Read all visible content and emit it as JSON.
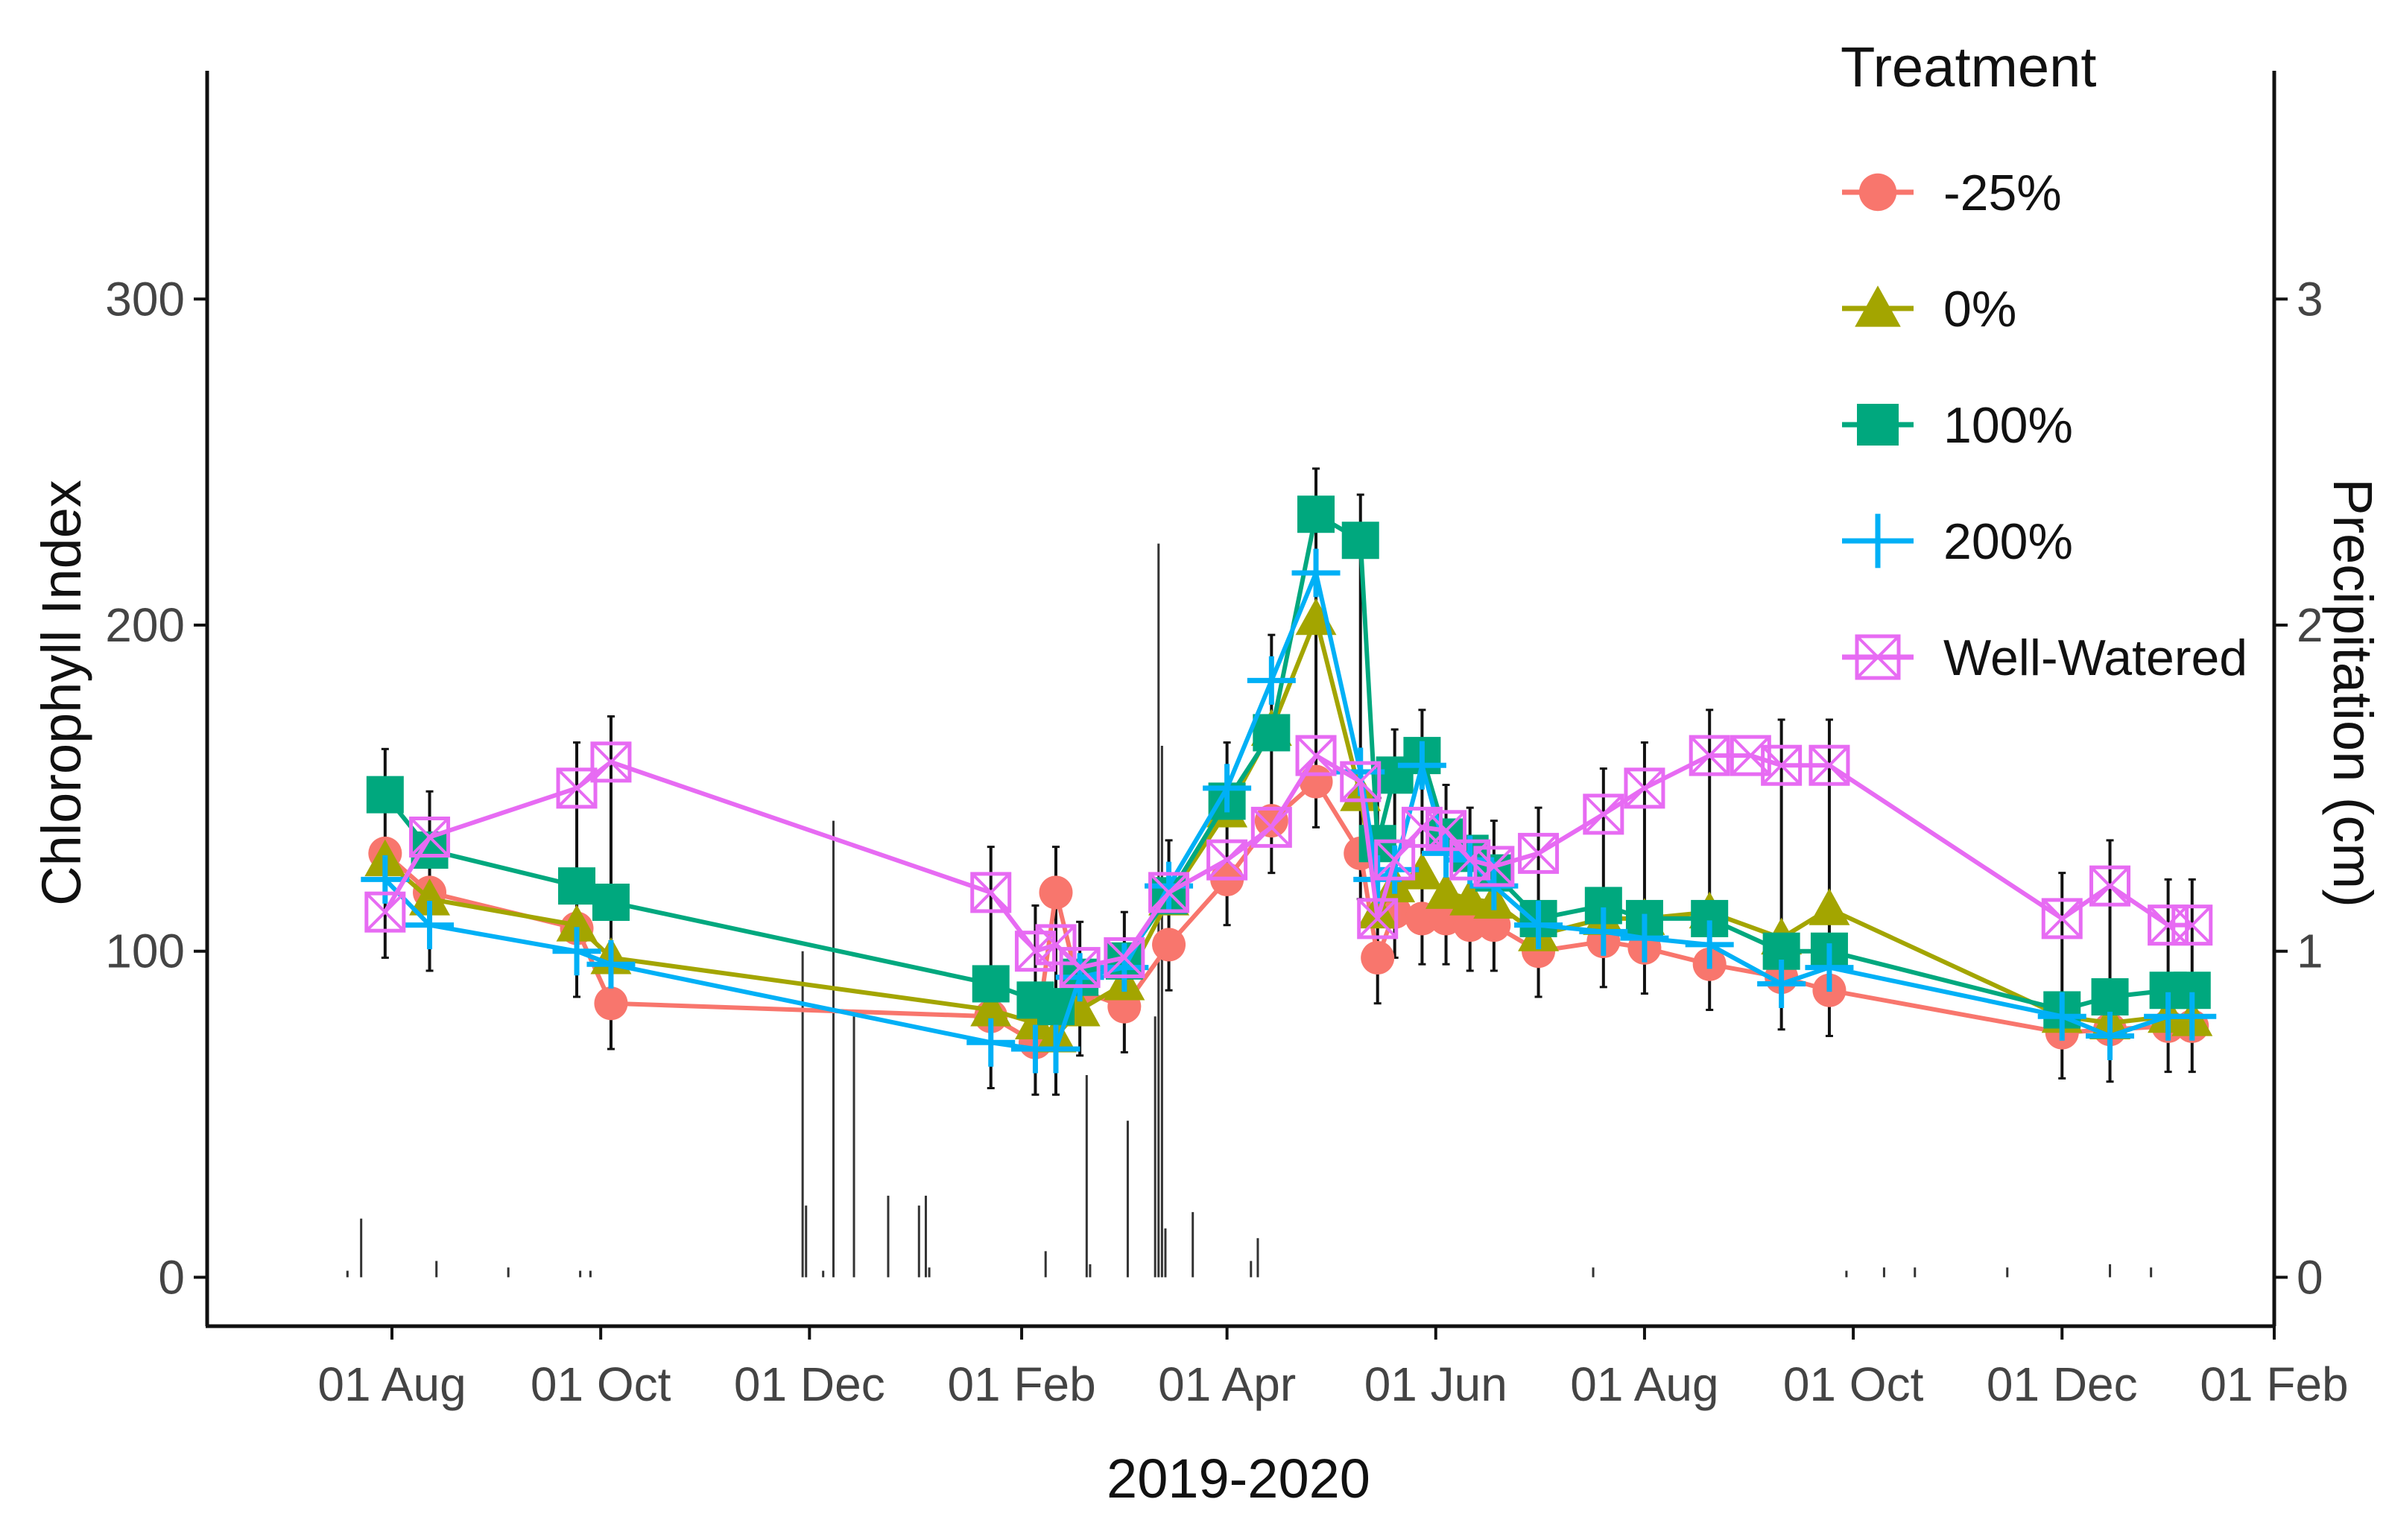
{
  "chart_data": {
    "type": "line",
    "xlabel": "2019-2020",
    "ylabel": "Chlorophyll Index",
    "y2label": "Precipitation (cm)",
    "x_ticks": [
      "01 Aug",
      "01 Oct",
      "01 Dec",
      "01 Feb",
      "01 Apr",
      "01 Jun",
      "01 Aug",
      "01 Oct",
      "01 Dec",
      "01 Feb"
    ],
    "x_tick_dates": [
      "2019-08-01",
      "2019-10-01",
      "2019-12-01",
      "2020-02-01",
      "2020-04-01",
      "2020-06-01",
      "2020-08-01",
      "2020-10-01",
      "2020-12-01",
      "2021-02-01"
    ],
    "xlim": [
      "2019-06-08",
      "2021-02-01"
    ],
    "y_ticks": [
      0,
      100,
      200,
      300
    ],
    "ylim": [
      -15,
      370
    ],
    "y2_ticks": [
      0,
      1,
      2,
      3
    ],
    "y2_scale": 100,
    "grid": false,
    "legend": {
      "title": "Treatment",
      "position": "right-inside-top"
    },
    "series": [
      {
        "name": "-25%",
        "color": "#F8766D",
        "marker": "circle",
        "points": [
          [
            "2019-07-30",
            130
          ],
          [
            "2019-08-12",
            118
          ],
          [
            "2019-09-24",
            107
          ],
          [
            "2019-10-04",
            84
          ],
          [
            "2020-01-23",
            80
          ],
          [
            "2020-02-05",
            72
          ],
          [
            "2020-02-11",
            118
          ],
          [
            "2020-02-18",
            88
          ],
          [
            "2020-03-02",
            83
          ],
          [
            "2020-03-15",
            102
          ],
          [
            "2020-04-01",
            122
          ],
          [
            "2020-04-14",
            140
          ],
          [
            "2020-04-27",
            152
          ],
          [
            "2020-05-10",
            130
          ],
          [
            "2020-05-15",
            98
          ],
          [
            "2020-05-20",
            112
          ],
          [
            "2020-05-28",
            110
          ],
          [
            "2020-06-04",
            110
          ],
          [
            "2020-06-11",
            108
          ],
          [
            "2020-06-18",
            108
          ],
          [
            "2020-07-01",
            100
          ],
          [
            "2020-07-20",
            103
          ],
          [
            "2020-08-01",
            101
          ],
          [
            "2020-08-20",
            96
          ],
          [
            "2020-09-10",
            92
          ],
          [
            "2020-09-24",
            88
          ],
          [
            "2020-12-01",
            75
          ],
          [
            "2020-12-15",
            76
          ],
          [
            "2021-01-01",
            77
          ],
          [
            "2021-01-08",
            77
          ]
        ]
      },
      {
        "name": "0%",
        "color": "#A3A500",
        "marker": "triangle",
        "points": [
          [
            "2019-07-30",
            128
          ],
          [
            "2019-08-12",
            116
          ],
          [
            "2019-09-24",
            108
          ],
          [
            "2019-10-04",
            98
          ],
          [
            "2020-01-23",
            82
          ],
          [
            "2020-02-05",
            78
          ],
          [
            "2020-02-11",
            74
          ],
          [
            "2020-02-18",
            82
          ],
          [
            "2020-03-02",
            90
          ],
          [
            "2020-03-15",
            116
          ],
          [
            "2020-04-01",
            143
          ],
          [
            "2020-04-14",
            168
          ],
          [
            "2020-04-27",
            202
          ],
          [
            "2020-05-10",
            148
          ],
          [
            "2020-05-15",
            112
          ],
          [
            "2020-05-20",
            120
          ],
          [
            "2020-05-28",
            124
          ],
          [
            "2020-06-04",
            118
          ],
          [
            "2020-06-11",
            116
          ],
          [
            "2020-06-18",
            115
          ],
          [
            "2020-07-01",
            105
          ],
          [
            "2020-07-20",
            110
          ],
          [
            "2020-08-01",
            110
          ],
          [
            "2020-08-20",
            112
          ],
          [
            "2020-09-10",
            104
          ],
          [
            "2020-09-24",
            113
          ],
          [
            "2020-12-01",
            80
          ],
          [
            "2020-12-15",
            78
          ],
          [
            "2021-01-01",
            80
          ],
          [
            "2021-01-08",
            79
          ]
        ]
      },
      {
        "name": "100%",
        "color": "#00A87E",
        "marker": "square",
        "points": [
          [
            "2019-07-30",
            148
          ],
          [
            "2019-08-12",
            131
          ],
          [
            "2019-09-24",
            120
          ],
          [
            "2019-10-04",
            115
          ],
          [
            "2020-01-23",
            90
          ],
          [
            "2020-02-05",
            85
          ],
          [
            "2020-02-11",
            83
          ],
          [
            "2020-02-18",
            92
          ],
          [
            "2020-03-02",
            97
          ],
          [
            "2020-03-15",
            117
          ],
          [
            "2020-04-01",
            146
          ],
          [
            "2020-04-14",
            167
          ],
          [
            "2020-04-27",
            234
          ],
          [
            "2020-05-10",
            226
          ],
          [
            "2020-05-15",
            133
          ],
          [
            "2020-05-20",
            154
          ],
          [
            "2020-05-28",
            160
          ],
          [
            "2020-06-04",
            135
          ],
          [
            "2020-06-11",
            130
          ],
          [
            "2020-06-18",
            124
          ],
          [
            "2020-07-01",
            110
          ],
          [
            "2020-07-20",
            114
          ],
          [
            "2020-08-01",
            110
          ],
          [
            "2020-08-20",
            110
          ],
          [
            "2020-09-10",
            100
          ],
          [
            "2020-09-24",
            100
          ],
          [
            "2020-12-01",
            82
          ],
          [
            "2020-12-15",
            86
          ],
          [
            "2021-01-01",
            88
          ],
          [
            "2021-01-08",
            88
          ]
        ]
      },
      {
        "name": "200%",
        "color": "#00B0F6",
        "marker": "plus",
        "points": [
          [
            "2019-07-30",
            122
          ],
          [
            "2019-08-12",
            108
          ],
          [
            "2019-09-24",
            100
          ],
          [
            "2019-10-04",
            96
          ],
          [
            "2020-01-23",
            72
          ],
          [
            "2020-02-05",
            70
          ],
          [
            "2020-02-11",
            70
          ],
          [
            "2020-02-18",
            92
          ],
          [
            "2020-03-02",
            95
          ],
          [
            "2020-03-15",
            120
          ],
          [
            "2020-04-01",
            150
          ],
          [
            "2020-04-14",
            183
          ],
          [
            "2020-04-27",
            216
          ],
          [
            "2020-05-10",
            155
          ],
          [
            "2020-05-15",
            122
          ],
          [
            "2020-05-20",
            125
          ],
          [
            "2020-05-28",
            157
          ],
          [
            "2020-06-04",
            130
          ],
          [
            "2020-06-11",
            128
          ],
          [
            "2020-06-18",
            120
          ],
          [
            "2020-07-01",
            108
          ],
          [
            "2020-07-20",
            106
          ],
          [
            "2020-08-01",
            104
          ],
          [
            "2020-08-20",
            102
          ],
          [
            "2020-09-10",
            90
          ],
          [
            "2020-09-24",
            95
          ],
          [
            "2020-12-01",
            80
          ],
          [
            "2020-12-15",
            74
          ],
          [
            "2021-01-01",
            80
          ],
          [
            "2021-01-08",
            80
          ]
        ]
      },
      {
        "name": "Well-Watered",
        "color": "#E76BF3",
        "marker": "square-cross",
        "points": [
          [
            "2019-07-30",
            112
          ],
          [
            "2019-08-12",
            135
          ],
          [
            "2019-09-24",
            150
          ],
          [
            "2019-10-04",
            158
          ],
          [
            "2020-01-23",
            118
          ],
          [
            "2020-02-05",
            100
          ],
          [
            "2020-02-11",
            102
          ],
          [
            "2020-02-18",
            95
          ],
          [
            "2020-03-02",
            98
          ],
          [
            "2020-03-15",
            118
          ],
          [
            "2020-04-01",
            128
          ],
          [
            "2020-04-14",
            138
          ],
          [
            "2020-04-27",
            160
          ],
          [
            "2020-05-10",
            152
          ],
          [
            "2020-05-15",
            110
          ],
          [
            "2020-05-20",
            128
          ],
          [
            "2020-05-28",
            138
          ],
          [
            "2020-06-04",
            137
          ],
          [
            "2020-06-11",
            128
          ],
          [
            "2020-06-18",
            126
          ],
          [
            "2020-07-01",
            130
          ],
          [
            "2020-07-20",
            142
          ],
          [
            "2020-08-01",
            150
          ],
          [
            "2020-08-20",
            160
          ],
          [
            "2020-09-01",
            160
          ],
          [
            "2020-09-10",
            157
          ],
          [
            "2020-09-24",
            157
          ],
          [
            "2020-12-01",
            110
          ],
          [
            "2020-12-15",
            120
          ],
          [
            "2021-01-01",
            108
          ],
          [
            "2021-01-08",
            108
          ]
        ]
      }
    ],
    "error_bar_dates": [
      "2019-07-30",
      "2019-08-12",
      "2019-09-24",
      "2019-10-04",
      "2020-01-23",
      "2020-02-05",
      "2020-02-11",
      "2020-02-18",
      "2020-03-02",
      "2020-03-15",
      "2020-04-01",
      "2020-04-14",
      "2020-04-27",
      "2020-05-10",
      "2020-05-15",
      "2020-05-20",
      "2020-05-28",
      "2020-06-04",
      "2020-06-11",
      "2020-06-18",
      "2020-07-01",
      "2020-07-20",
      "2020-08-01",
      "2020-08-20",
      "2020-09-10",
      "2020-09-24",
      "2020-12-01",
      "2020-12-15",
      "2021-01-01",
      "2021-01-08"
    ],
    "error_bar_halfwidth": 14,
    "precipitation_cm": {
      "color": "#333333",
      "bars": [
        [
          "2019-07-19",
          0.02
        ],
        [
          "2019-07-23",
          0.18
        ],
        [
          "2019-08-14",
          0.05
        ],
        [
          "2019-09-04",
          0.03
        ],
        [
          "2019-09-25",
          0.02
        ],
        [
          "2019-09-28",
          0.02
        ],
        [
          "2019-11-29",
          1.0
        ],
        [
          "2019-11-30",
          0.22
        ],
        [
          "2019-12-05",
          0.02
        ],
        [
          "2019-12-08",
          1.4
        ],
        [
          "2019-12-14",
          0.8
        ],
        [
          "2019-12-24",
          0.25
        ],
        [
          "2020-01-02",
          0.22
        ],
        [
          "2020-01-04",
          0.25
        ],
        [
          "2020-01-05",
          0.03
        ],
        [
          "2020-02-08",
          0.08
        ],
        [
          "2020-02-20",
          0.62
        ],
        [
          "2020-02-21",
          0.04
        ],
        [
          "2020-03-03",
          0.48
        ],
        [
          "2020-03-11",
          0.8
        ],
        [
          "2020-03-12",
          2.25
        ],
        [
          "2020-03-13",
          1.63
        ],
        [
          "2020-03-14",
          0.15
        ],
        [
          "2020-03-22",
          0.2
        ],
        [
          "2020-04-08",
          0.05
        ],
        [
          "2020-04-10",
          0.12
        ],
        [
          "2020-07-17",
          0.03
        ],
        [
          "2020-09-29",
          0.02
        ],
        [
          "2020-10-10",
          0.03
        ],
        [
          "2020-10-19",
          0.03
        ],
        [
          "2020-11-15",
          0.03
        ],
        [
          "2020-12-15",
          0.04
        ],
        [
          "2020-12-27",
          0.03
        ]
      ]
    }
  }
}
